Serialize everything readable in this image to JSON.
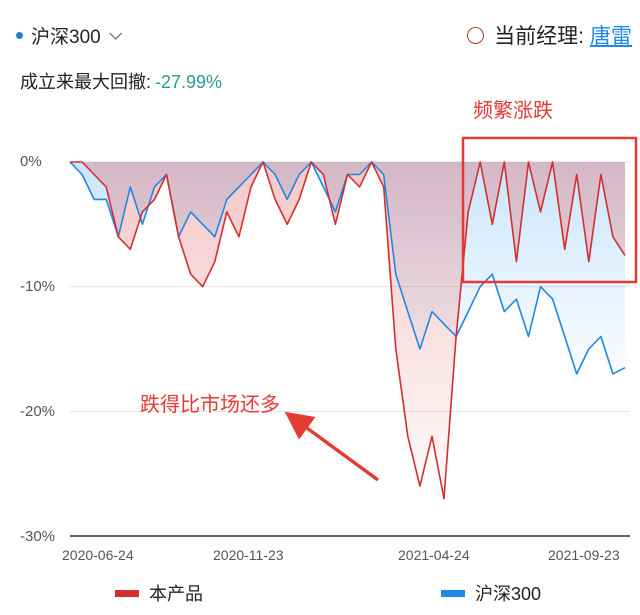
{
  "header": {
    "benchmark_selector": "沪深300",
    "manager_label": "当前经理:",
    "manager_name": "唐雷",
    "drawdown_label": "成立来最大回撤:",
    "drawdown_value": "-27.99%"
  },
  "annotations": {
    "frequent": "频繁涨跌",
    "fell_more": "跌得比市场还多"
  },
  "colors": {
    "product": "#d32f2f",
    "benchmark": "#1e88e5",
    "annotation": "#e53935",
    "drawdown_value": "#2a9d8f"
  },
  "chart_data": {
    "type": "area",
    "ylim": [
      -30,
      0
    ],
    "y_ticks": [
      0,
      -10,
      -20,
      -30
    ],
    "y_tick_labels": [
      "0%",
      "-10%",
      "-20%",
      "-30%"
    ],
    "x_tick_labels": [
      "2020-06-24",
      "2020-11-23",
      "2021-04-24",
      "2021-09-23"
    ],
    "grid": "horizontal",
    "legend_position": "bottom",
    "x_dates": [
      "2020-06-24",
      "2020-07-05",
      "2020-07-15",
      "2020-07-25",
      "2020-08-05",
      "2020-08-15",
      "2020-08-25",
      "2020-09-05",
      "2020-09-15",
      "2020-09-25",
      "2020-10-05",
      "2020-10-15",
      "2020-10-25",
      "2020-11-05",
      "2020-11-15",
      "2020-11-23",
      "2020-12-05",
      "2020-12-15",
      "2020-12-25",
      "2021-01-05",
      "2021-01-15",
      "2021-01-25",
      "2021-02-05",
      "2021-02-15",
      "2021-02-25",
      "2021-03-05",
      "2021-03-15",
      "2021-03-25",
      "2021-04-05",
      "2021-04-15",
      "2021-04-24",
      "2021-05-05",
      "2021-05-15",
      "2021-05-25",
      "2021-06-05",
      "2021-06-15",
      "2021-06-25",
      "2021-07-05",
      "2021-07-15",
      "2021-07-25",
      "2021-08-05",
      "2021-08-15",
      "2021-08-25",
      "2021-09-05",
      "2021-09-15",
      "2021-09-23",
      "2021-10-05"
    ],
    "series": [
      {
        "name": "本产品",
        "values": [
          0,
          0,
          -1,
          -2,
          -6,
          -7,
          -4,
          -3,
          -1,
          -6,
          -9,
          -10,
          -8,
          -4,
          -6,
          -2,
          0,
          -3,
          -5,
          -3,
          0,
          -1,
          -5,
          -1,
          -2,
          0,
          -2,
          -15,
          -22,
          -26,
          -22,
          -27,
          -14,
          -4,
          0,
          -5,
          0,
          -8,
          0,
          -4,
          0,
          -7,
          -1,
          -8,
          -1,
          -6,
          -7.5
        ]
      },
      {
        "name": "沪深300",
        "values": [
          0,
          -1,
          -3,
          -3,
          -6,
          -2,
          -5,
          -2,
          -1,
          -6,
          -4,
          -5,
          -6,
          -3,
          -2,
          -1,
          0,
          -1,
          -3,
          -1,
          0,
          -2,
          -4,
          -1,
          -1,
          0,
          -1,
          -9,
          -12,
          -15,
          -12,
          -13,
          -14,
          -12,
          -10,
          -9,
          -12,
          -11,
          -14,
          -10,
          -11,
          -14,
          -17,
          -15,
          -14,
          -17,
          -16.5
        ]
      }
    ]
  },
  "legend": [
    {
      "label": "本产品",
      "color": "#d32f2f"
    },
    {
      "label": "沪深300",
      "color": "#1e88e5"
    }
  ]
}
